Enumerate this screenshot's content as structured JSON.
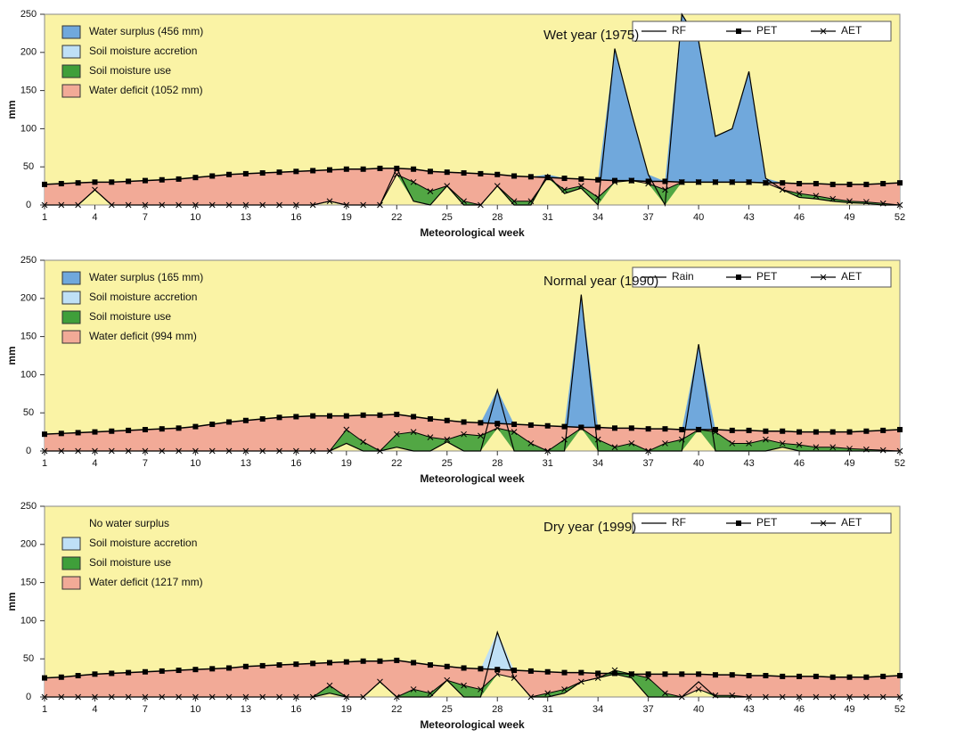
{
  "colors": {
    "panel_bg": "#faf3a5",
    "water_surplus": "#70a8dc",
    "soil_moisture_accretion": "#bfe0f6",
    "soil_moisture_use": "#3f9f3a",
    "water_deficit": "#f2aa97",
    "line": "#000000"
  },
  "chart_data": [
    {
      "type": "area",
      "title": "Wet year (1975)",
      "xlabel": "Meteorological week",
      "ylabel": "mm",
      "x_ticks": [
        "1",
        "4",
        "7",
        "10",
        "13",
        "16",
        "19",
        "22",
        "25",
        "28",
        "31",
        "34",
        "37",
        "40",
        "43",
        "46",
        "49",
        "52"
      ],
      "y_ticks": [
        "0",
        "50",
        "100",
        "150",
        "200",
        "250"
      ],
      "ylim": [
        0,
        250
      ],
      "xlim": [
        1,
        52
      ],
      "legend_lines": [
        "RF",
        "PET",
        "AET"
      ],
      "legend_areas": [
        {
          "label": "Water surplus (456 mm)",
          "key": "water_surplus",
          "swatch": true
        },
        {
          "label": "Soil moisture accretion",
          "key": "soil_moisture_accretion",
          "swatch": true
        },
        {
          "label": "Soil moisture use",
          "key": "soil_moisture_use",
          "swatch": true
        },
        {
          "label": "Water deficit (1052 mm)",
          "key": "water_deficit",
          "swatch": true
        }
      ],
      "x": [
        1,
        2,
        3,
        4,
        5,
        6,
        7,
        8,
        9,
        10,
        11,
        12,
        13,
        14,
        15,
        16,
        17,
        18,
        19,
        20,
        21,
        22,
        23,
        24,
        25,
        26,
        27,
        28,
        29,
        30,
        31,
        32,
        33,
        34,
        35,
        36,
        37,
        38,
        39,
        40,
        41,
        42,
        43,
        44,
        45,
        46,
        47,
        48,
        49,
        50,
        51,
        52
      ],
      "series": [
        {
          "name": "RF",
          "values": [
            0,
            0,
            0,
            20,
            0,
            0,
            0,
            0,
            0,
            0,
            0,
            0,
            0,
            0,
            0,
            0,
            0,
            5,
            0,
            0,
            0,
            48,
            5,
            0,
            25,
            0,
            0,
            25,
            0,
            0,
            40,
            15,
            22,
            0,
            205,
            120,
            40,
            0,
            250,
            215,
            90,
            100,
            175,
            35,
            20,
            10,
            8,
            5,
            3,
            2,
            0,
            0
          ]
        },
        {
          "name": "PET",
          "values": [
            27,
            28,
            29,
            30,
            30,
            31,
            32,
            33,
            34,
            36,
            38,
            40,
            41,
            42,
            43,
            44,
            45,
            46,
            47,
            47,
            48,
            48,
            47,
            44,
            43,
            42,
            41,
            40,
            38,
            37,
            36,
            35,
            34,
            33,
            32,
            32,
            31,
            31,
            30,
            30,
            30,
            30,
            30,
            29,
            29,
            28,
            28,
            27,
            27,
            27,
            28,
            29
          ]
        },
        {
          "name": "AET",
          "values": [
            0,
            0,
            0,
            20,
            0,
            0,
            0,
            0,
            0,
            0,
            0,
            0,
            0,
            0,
            0,
            0,
            0,
            5,
            0,
            0,
            0,
            40,
            30,
            18,
            25,
            5,
            0,
            25,
            5,
            5,
            36,
            20,
            25,
            10,
            30,
            32,
            28,
            20,
            30,
            30,
            30,
            30,
            30,
            29,
            20,
            15,
            12,
            8,
            5,
            4,
            2,
            0
          ]
        }
      ]
    },
    {
      "type": "area",
      "title": "Normal year (1990)",
      "xlabel": "Meteorological week",
      "ylabel": "mm",
      "x_ticks": [
        "1",
        "4",
        "7",
        "10",
        "13",
        "16",
        "19",
        "22",
        "25",
        "28",
        "31",
        "34",
        "37",
        "40",
        "43",
        "46",
        "49",
        "52"
      ],
      "y_ticks": [
        "0",
        "50",
        "100",
        "150",
        "200",
        "250"
      ],
      "ylim": [
        0,
        250
      ],
      "xlim": [
        1,
        52
      ],
      "legend_lines": [
        "Rain",
        "PET",
        "AET"
      ],
      "legend_areas": [
        {
          "label": "Water surplus (165 mm)",
          "key": "water_surplus",
          "swatch": true
        },
        {
          "label": "Soil moisture accretion",
          "key": "soil_moisture_accretion",
          "swatch": true
        },
        {
          "label": "Soil moisture use",
          "key": "soil_moisture_use",
          "swatch": true
        },
        {
          "label": "Water deficit (994 mm)",
          "key": "water_deficit",
          "swatch": true
        }
      ],
      "x": [
        1,
        2,
        3,
        4,
        5,
        6,
        7,
        8,
        9,
        10,
        11,
        12,
        13,
        14,
        15,
        16,
        17,
        18,
        19,
        20,
        21,
        22,
        23,
        24,
        25,
        26,
        27,
        28,
        29,
        30,
        31,
        32,
        33,
        34,
        35,
        36,
        37,
        38,
        39,
        40,
        41,
        42,
        43,
        44,
        45,
        46,
        47,
        48,
        49,
        50,
        51,
        52
      ],
      "series": [
        {
          "name": "Rain",
          "values": [
            0,
            0,
            0,
            0,
            0,
            0,
            0,
            0,
            0,
            0,
            0,
            0,
            0,
            0,
            0,
            0,
            0,
            0,
            10,
            0,
            0,
            5,
            0,
            0,
            12,
            0,
            0,
            80,
            0,
            0,
            0,
            0,
            205,
            0,
            0,
            0,
            0,
            0,
            0,
            140,
            0,
            0,
            0,
            0,
            5,
            0,
            0,
            0,
            0,
            0,
            0,
            0
          ]
        },
        {
          "name": "PET",
          "values": [
            22,
            23,
            24,
            25,
            26,
            27,
            28,
            29,
            30,
            32,
            35,
            38,
            40,
            42,
            44,
            45,
            46,
            46,
            46,
            47,
            47,
            48,
            45,
            42,
            40,
            38,
            37,
            36,
            35,
            34,
            33,
            32,
            31,
            31,
            30,
            30,
            29,
            29,
            28,
            28,
            28,
            27,
            27,
            26,
            26,
            25,
            25,
            25,
            25,
            26,
            27,
            28
          ]
        },
        {
          "name": "AET",
          "values": [
            0,
            0,
            0,
            0,
            0,
            0,
            0,
            0,
            0,
            0,
            0,
            0,
            0,
            0,
            0,
            0,
            0,
            0,
            28,
            12,
            0,
            22,
            25,
            18,
            15,
            22,
            20,
            30,
            25,
            10,
            0,
            15,
            30,
            15,
            5,
            10,
            0,
            10,
            15,
            28,
            25,
            10,
            10,
            15,
            10,
            8,
            5,
            5,
            3,
            2,
            1,
            0
          ]
        }
      ]
    },
    {
      "type": "area",
      "title": "Dry year (1999)",
      "xlabel": "Meteorological week",
      "ylabel": "mm",
      "x_ticks": [
        "1",
        "4",
        "7",
        "10",
        "13",
        "16",
        "19",
        "22",
        "25",
        "28",
        "31",
        "34",
        "37",
        "40",
        "43",
        "46",
        "49",
        "52"
      ],
      "y_ticks": [
        "0",
        "50",
        "100",
        "150",
        "200",
        "250"
      ],
      "ylim": [
        0,
        250
      ],
      "xlim": [
        1,
        52
      ],
      "legend_lines": [
        "RF",
        "PET",
        "AET"
      ],
      "legend_areas": [
        {
          "label": "No water surplus",
          "key": "water_surplus",
          "swatch": false
        },
        {
          "label": "Soil moisture accretion",
          "key": "soil_moisture_accretion",
          "swatch": true
        },
        {
          "label": "Soil moisture use",
          "key": "soil_moisture_use",
          "swatch": true
        },
        {
          "label": "Water deficit (1217 mm)",
          "key": "water_deficit",
          "swatch": true
        }
      ],
      "x": [
        1,
        2,
        3,
        4,
        5,
        6,
        7,
        8,
        9,
        10,
        11,
        12,
        13,
        14,
        15,
        16,
        17,
        18,
        19,
        20,
        21,
        22,
        23,
        24,
        25,
        26,
        27,
        28,
        29,
        30,
        31,
        32,
        33,
        34,
        35,
        36,
        37,
        38,
        39,
        40,
        41,
        42,
        43,
        44,
        45,
        46,
        47,
        48,
        49,
        50,
        51,
        52
      ],
      "series": [
        {
          "name": "RF",
          "values": [
            0,
            0,
            0,
            0,
            0,
            0,
            0,
            0,
            0,
            0,
            0,
            0,
            0,
            0,
            0,
            0,
            0,
            5,
            0,
            0,
            20,
            0,
            0,
            0,
            22,
            0,
            0,
            85,
            25,
            0,
            0,
            5,
            20,
            25,
            30,
            25,
            0,
            0,
            0,
            20,
            0,
            0,
            0,
            0,
            0,
            0,
            0,
            0,
            0,
            0,
            0,
            0
          ]
        },
        {
          "name": "PET",
          "values": [
            25,
            26,
            28,
            30,
            31,
            32,
            33,
            34,
            35,
            36,
            37,
            38,
            40,
            41,
            42,
            43,
            44,
            45,
            46,
            47,
            47,
            48,
            45,
            42,
            40,
            38,
            37,
            36,
            35,
            34,
            33,
            32,
            32,
            31,
            31,
            30,
            30,
            30,
            30,
            30,
            29,
            29,
            28,
            28,
            27,
            27,
            27,
            26,
            26,
            26,
            27,
            28
          ]
        },
        {
          "name": "AET",
          "values": [
            0,
            0,
            0,
            0,
            0,
            0,
            0,
            0,
            0,
            0,
            0,
            0,
            0,
            0,
            0,
            0,
            0,
            15,
            0,
            0,
            20,
            0,
            10,
            5,
            22,
            15,
            10,
            30,
            25,
            0,
            5,
            10,
            20,
            25,
            35,
            30,
            25,
            5,
            0,
            10,
            2,
            2,
            0,
            0,
            0,
            0,
            0,
            0,
            0,
            0,
            0,
            0
          ]
        }
      ]
    }
  ]
}
